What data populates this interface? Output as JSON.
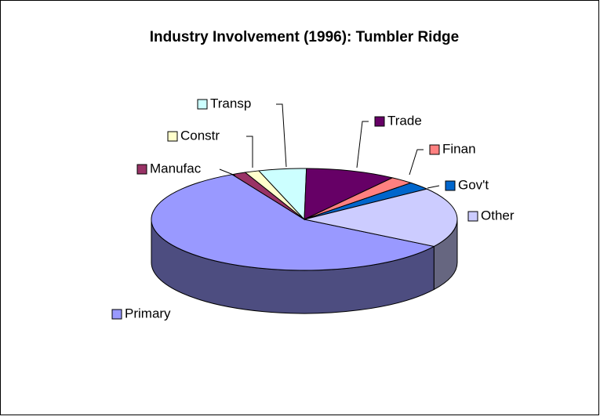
{
  "chart_data": {
    "type": "pie",
    "title": "Industry Involvement (1996): Tumbler Ridge",
    "categories": [
      "Primary",
      "Manufac",
      "Constr",
      "Transp",
      "Trade",
      "Finan",
      "Gov't",
      "Other"
    ],
    "values": [
      58,
      1.5,
      1.5,
      5,
      9.5,
      2.5,
      2.5,
      19
    ],
    "colors": [
      "#9999ff",
      "#993366",
      "#ffffcc",
      "#ccffff",
      "#660066",
      "#ff8080",
      "#0066cc",
      "#ccccff"
    ]
  }
}
